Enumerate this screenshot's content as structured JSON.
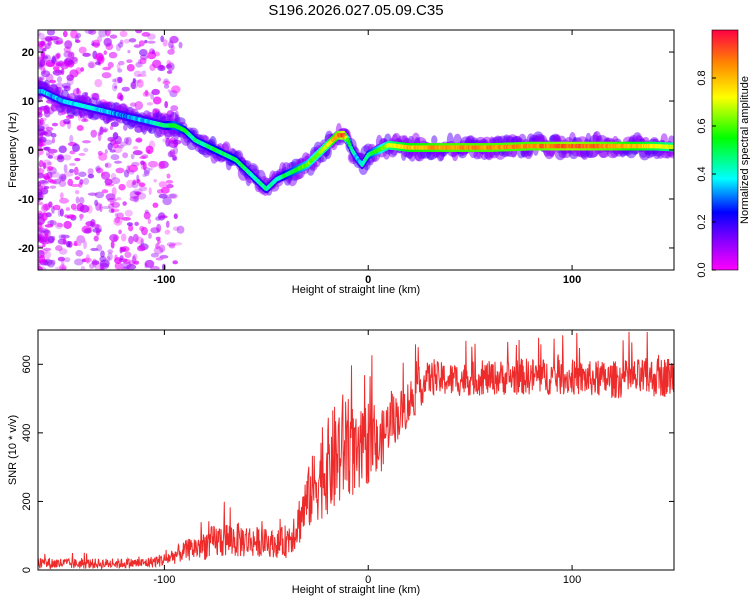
{
  "title": "S196.2026.027.05.09.C35",
  "chart_data": [
    {
      "type": "heatmap",
      "xlabel": "Height of straight line (km)",
      "ylabel": "Frequency (Hz)",
      "xlim": [
        -162,
        150
      ],
      "ylim": [
        -24.5,
        24.5
      ],
      "xticks": [
        "-100",
        "0",
        "100"
      ],
      "yticks": [
        "-20",
        "-10",
        "0",
        "10",
        "20"
      ],
      "colorbar": {
        "label": "Normalized spectral amplitude",
        "range": [
          0,
          1
        ],
        "ticks": [
          "0.0",
          "0.2",
          "0.4",
          "0.6",
          "0.8"
        ],
        "colormap": [
          "#ff00ff",
          "#8800ff",
          "#0000ff",
          "#00ffff",
          "#00ff00",
          "#ffff00",
          "#ff8800",
          "#ff0000"
        ]
      },
      "trace": {
        "height_km": [
          -160,
          -150,
          -140,
          -130,
          -120,
          -110,
          -100,
          -95,
          -90,
          -85,
          -80,
          -75,
          -70,
          -65,
          -60,
          -55,
          -50,
          -45,
          -40,
          -35,
          -30,
          -25,
          -20,
          -15,
          -12,
          -10,
          -8,
          -5,
          -3,
          0,
          5,
          10,
          20,
          40,
          60,
          80,
          100,
          120,
          140,
          150
        ],
        "frequency_hz": [
          12,
          10,
          9,
          8,
          7,
          6,
          5,
          5,
          4,
          2,
          1,
          0,
          -1,
          -2,
          -4,
          -6,
          -8,
          -6,
          -5,
          -4,
          -3,
          -1,
          1,
          3,
          3,
          2,
          0,
          -2,
          -3,
          -1,
          0,
          1,
          0.5,
          0.5,
          0.5,
          0.8,
          0.8,
          0.8,
          0.8,
          0.6
        ],
        "amplitude": [
          0.35,
          0.35,
          0.4,
          0.35,
          0.3,
          0.35,
          0.45,
          0.55,
          0.5,
          0.45,
          0.45,
          0.5,
          0.45,
          0.5,
          0.45,
          0.45,
          0.45,
          0.4,
          0.5,
          0.55,
          0.6,
          0.65,
          0.7,
          0.85,
          0.95,
          0.6,
          0.45,
          0.35,
          0.4,
          0.5,
          0.6,
          0.7,
          0.8,
          0.85,
          0.85,
          0.85,
          0.9,
          0.85,
          0.75,
          0.7
        ]
      }
    },
    {
      "type": "line",
      "xlabel": "Height of straight line (km)",
      "ylabel": "SNR (10 * v/v)",
      "xlim": [
        -162,
        150
      ],
      "ylim": [
        0,
        700
      ],
      "xticks": [
        "-100",
        "0",
        "100"
      ],
      "yticks": [
        "0",
        "200",
        "400",
        "600"
      ],
      "color": "#ee2b2b",
      "envelope": {
        "height_km": [
          -162,
          -140,
          -110,
          -100,
          -90,
          -80,
          -70,
          -60,
          -50,
          -45,
          -40,
          -35,
          -30,
          -25,
          -20,
          -15,
          -10,
          -5,
          0,
          5,
          10,
          15,
          20,
          25,
          30,
          40,
          60,
          80,
          100,
          120,
          150
        ],
        "snr_mean": [
          20,
          18,
          20,
          30,
          55,
          75,
          90,
          85,
          80,
          75,
          85,
          130,
          200,
          260,
          300,
          330,
          380,
          310,
          380,
          350,
          430,
          450,
          490,
          530,
          560,
          555,
          560,
          565,
          560,
          555,
          565
        ],
        "snr_spread": [
          18,
          15,
          15,
          20,
          30,
          45,
          55,
          50,
          40,
          40,
          50,
          70,
          90,
          120,
          140,
          170,
          160,
          110,
          130,
          90,
          80,
          70,
          70,
          60,
          50,
          50,
          50,
          55,
          50,
          55,
          60
        ]
      }
    }
  ]
}
